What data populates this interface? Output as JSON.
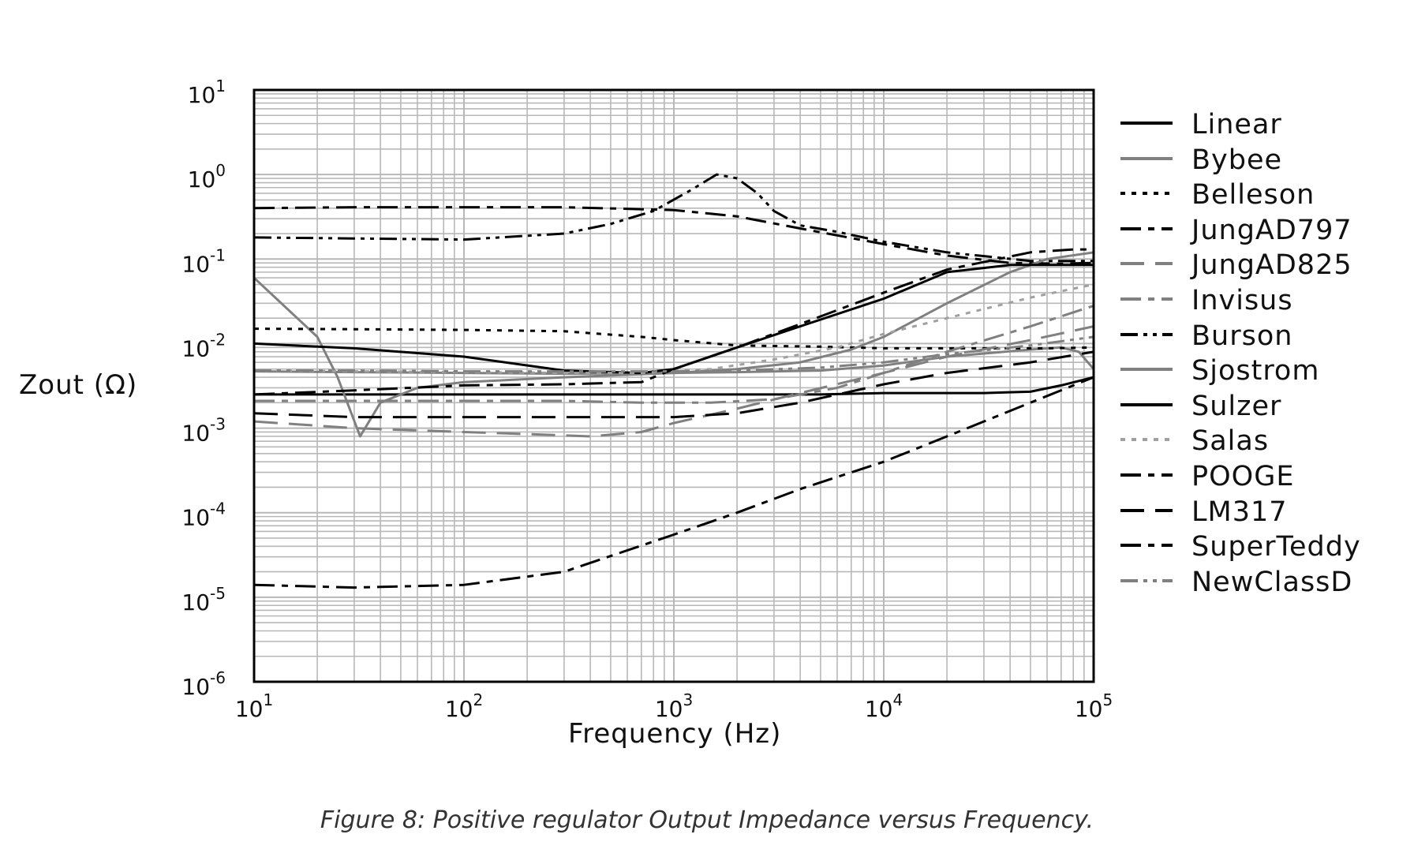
{
  "chart_data": {
    "type": "line",
    "title": "",
    "xlabel": "Frequency (Hz)",
    "ylabel": "Zout (Ω)",
    "xscale": "log",
    "yscale": "log",
    "xlim": [
      10,
      100000
    ],
    "ylim": [
      1e-06,
      10
    ],
    "x_ticks": [
      {
        "base": "10",
        "exp": "1"
      },
      {
        "base": "10",
        "exp": "2"
      },
      {
        "base": "10",
        "exp": "3"
      },
      {
        "base": "10",
        "exp": "4"
      },
      {
        "base": "10",
        "exp": "5"
      }
    ],
    "y_ticks": [
      {
        "base": "10",
        "exp": "1"
      },
      {
        "base": "10",
        "exp": "0"
      },
      {
        "base": "10",
        "exp": "-1"
      },
      {
        "base": "10",
        "exp": "-2"
      },
      {
        "base": "10",
        "exp": "-3"
      },
      {
        "base": "10",
        "exp": "-4"
      },
      {
        "base": "10",
        "exp": "-5"
      },
      {
        "base": "10",
        "exp": "-6"
      }
    ],
    "grid": true,
    "legend_position": "right",
    "series": [
      {
        "name": "Linear",
        "color": "#000000",
        "dash": "solid",
        "points": [
          [
            10,
            0.0025
          ],
          [
            30,
            0.0025
          ],
          [
            100,
            0.0025
          ],
          [
            300,
            0.0025
          ],
          [
            1000,
            0.0025
          ],
          [
            2000,
            0.0025
          ],
          [
            5000,
            0.0025
          ],
          [
            10000,
            0.0026
          ],
          [
            20000,
            0.0026
          ],
          [
            30000,
            0.0026
          ],
          [
            50000,
            0.0027
          ],
          [
            70000,
            0.0032
          ],
          [
            100000,
            0.004
          ]
        ]
      },
      {
        "name": "Bybee",
        "color": "#808080",
        "dash": "solid",
        "points": [
          [
            10,
            0.06
          ],
          [
            20,
            0.012
          ],
          [
            25,
            0.004
          ],
          [
            32,
            0.0008
          ],
          [
            40,
            0.002
          ],
          [
            60,
            0.003
          ],
          [
            100,
            0.0035
          ],
          [
            300,
            0.004
          ],
          [
            1000,
            0.0045
          ],
          [
            2000,
            0.0046
          ],
          [
            5000,
            0.0048
          ],
          [
            10000,
            0.0055
          ],
          [
            20000,
            0.007
          ],
          [
            50000,
            0.0085
          ],
          [
            70000,
            0.009
          ],
          [
            85000,
            0.008
          ],
          [
            100000,
            0.005
          ]
        ]
      },
      {
        "name": "Belleson",
        "color": "#000000",
        "dash": "short",
        "points": [
          [
            10,
            0.015
          ],
          [
            30,
            0.0148
          ],
          [
            100,
            0.0145
          ],
          [
            300,
            0.014
          ],
          [
            700,
            0.012
          ],
          [
            1000,
            0.011
          ],
          [
            2000,
            0.0095
          ],
          [
            5000,
            0.0092
          ],
          [
            10000,
            0.0088
          ],
          [
            30000,
            0.0088
          ],
          [
            60000,
            0.0088
          ],
          [
            100000,
            0.009
          ]
        ]
      },
      {
        "name": "JungAD797",
        "color": "#000000",
        "dash": "long-short",
        "points": [
          [
            10,
            0.4
          ],
          [
            30,
            0.41
          ],
          [
            100,
            0.41
          ],
          [
            300,
            0.41
          ],
          [
            1000,
            0.38
          ],
          [
            2000,
            0.32
          ],
          [
            4000,
            0.23
          ],
          [
            10000,
            0.15
          ],
          [
            20000,
            0.11
          ],
          [
            40000,
            0.09
          ],
          [
            70000,
            0.088
          ],
          [
            100000,
            0.09
          ]
        ]
      },
      {
        "name": "JungAD825",
        "color": "#808080",
        "dash": "long",
        "points": [
          [
            10,
            0.0012
          ],
          [
            30,
            0.001
          ],
          [
            100,
            0.0009
          ],
          [
            200,
            0.00085
          ],
          [
            400,
            0.0008
          ],
          [
            700,
            0.0009
          ],
          [
            1000,
            0.00115
          ],
          [
            2000,
            0.0017
          ],
          [
            4000,
            0.0026
          ],
          [
            10000,
            0.0045
          ],
          [
            20000,
            0.007
          ],
          [
            50000,
            0.011
          ],
          [
            100000,
            0.016
          ]
        ]
      },
      {
        "name": "Invisus",
        "color": "#808080",
        "dash": "long-short",
        "points": [
          [
            10,
            0.0021
          ],
          [
            30,
            0.0021
          ],
          [
            100,
            0.0021
          ],
          [
            300,
            0.0021
          ],
          [
            700,
            0.002
          ],
          [
            1500,
            0.002
          ],
          [
            3000,
            0.0022
          ],
          [
            6000,
            0.003
          ],
          [
            10000,
            0.0045
          ],
          [
            20000,
            0.008
          ],
          [
            50000,
            0.016
          ],
          [
            100000,
            0.028
          ]
        ]
      },
      {
        "name": "Burson",
        "color": "#000000",
        "dash": "dash-dot-dot",
        "points": [
          [
            10,
            0.18
          ],
          [
            30,
            0.175
          ],
          [
            100,
            0.17
          ],
          [
            300,
            0.2
          ],
          [
            500,
            0.26
          ],
          [
            800,
            0.37
          ],
          [
            1200,
            0.65
          ],
          [
            1600,
            1.0
          ],
          [
            2000,
            0.9
          ],
          [
            2500,
            0.6
          ],
          [
            3000,
            0.37
          ],
          [
            4000,
            0.25
          ],
          [
            6000,
            0.21
          ],
          [
            10000,
            0.16
          ],
          [
            20000,
            0.12
          ],
          [
            50000,
            0.095
          ],
          [
            100000,
            0.095
          ]
        ]
      },
      {
        "name": "Sjostrom",
        "color": "#808080",
        "dash": "solid",
        "points": [
          [
            10,
            0.0047
          ],
          [
            30,
            0.0046
          ],
          [
            100,
            0.0045
          ],
          [
            300,
            0.0044
          ],
          [
            1000,
            0.0045
          ],
          [
            2000,
            0.005
          ],
          [
            4000,
            0.006
          ],
          [
            7000,
            0.0085
          ],
          [
            10000,
            0.012
          ],
          [
            20000,
            0.03
          ],
          [
            40000,
            0.07
          ],
          [
            60000,
            0.1
          ],
          [
            100000,
            0.12
          ]
        ]
      },
      {
        "name": "Sulzer",
        "color": "#000000",
        "dash": "solid",
        "points": [
          [
            10,
            0.01
          ],
          [
            30,
            0.0088
          ],
          [
            100,
            0.007
          ],
          [
            300,
            0.0048
          ],
          [
            700,
            0.0045
          ],
          [
            1000,
            0.005
          ],
          [
            2000,
            0.009
          ],
          [
            4000,
            0.016
          ],
          [
            10000,
            0.034
          ],
          [
            20000,
            0.07
          ],
          [
            40000,
            0.085
          ],
          [
            70000,
            0.085
          ],
          [
            100000,
            0.085
          ]
        ]
      },
      {
        "name": "Salas",
        "color": "#a0a0a0",
        "dash": "short",
        "points": [
          [
            10,
            0.0048
          ],
          [
            30,
            0.0047
          ],
          [
            100,
            0.0046
          ],
          [
            300,
            0.0045
          ],
          [
            700,
            0.0045
          ],
          [
            1500,
            0.005
          ],
          [
            3000,
            0.0065
          ],
          [
            6000,
            0.009
          ],
          [
            10000,
            0.013
          ],
          [
            20000,
            0.02
          ],
          [
            50000,
            0.035
          ],
          [
            100000,
            0.05
          ]
        ]
      },
      {
        "name": "POOGE",
        "color": "#000000",
        "dash": "long-short",
        "points": [
          [
            10,
            0.0025
          ],
          [
            30,
            0.0028
          ],
          [
            100,
            0.0032
          ],
          [
            300,
            0.0033
          ],
          [
            700,
            0.0035
          ],
          [
            1000,
            0.005
          ],
          [
            2000,
            0.009
          ],
          [
            4000,
            0.017
          ],
          [
            10000,
            0.04
          ],
          [
            20000,
            0.075
          ],
          [
            50000,
            0.12
          ],
          [
            80000,
            0.13
          ],
          [
            100000,
            0.13
          ]
        ]
      },
      {
        "name": "LM317",
        "color": "#000000",
        "dash": "long",
        "points": [
          [
            10,
            0.0015
          ],
          [
            30,
            0.00135
          ],
          [
            100,
            0.00135
          ],
          [
            300,
            0.00135
          ],
          [
            1000,
            0.00135
          ],
          [
            2000,
            0.0015
          ],
          [
            4000,
            0.002
          ],
          [
            10000,
            0.0033
          ],
          [
            20000,
            0.0045
          ],
          [
            50000,
            0.006
          ],
          [
            100000,
            0.008
          ]
        ]
      },
      {
        "name": "SuperTeddy",
        "color": "#000000",
        "dash": "long-short",
        "points": [
          [
            10,
            1.4e-05
          ],
          [
            30,
            1.3e-05
          ],
          [
            100,
            1.4e-05
          ],
          [
            300,
            2e-05
          ],
          [
            1000,
            5.5e-05
          ],
          [
            2000,
            0.0001
          ],
          [
            4000,
            0.00019
          ],
          [
            10000,
            0.0004
          ],
          [
            20000,
            0.0008
          ],
          [
            50000,
            0.002
          ],
          [
            100000,
            0.004
          ]
        ]
      },
      {
        "name": "NewClassD",
        "color": "#808080",
        "dash": "dash-dot-dot",
        "points": [
          [
            10,
            0.0048
          ],
          [
            30,
            0.0048
          ],
          [
            100,
            0.0047
          ],
          [
            300,
            0.0047
          ],
          [
            1000,
            0.0047
          ],
          [
            2000,
            0.0048
          ],
          [
            5000,
            0.0052
          ],
          [
            10000,
            0.006
          ],
          [
            20000,
            0.0075
          ],
          [
            50000,
            0.0095
          ],
          [
            100000,
            0.012
          ]
        ]
      }
    ]
  },
  "figure": {
    "caption": "Figure 8: Positive regulator Output Impedance versus Frequency."
  }
}
